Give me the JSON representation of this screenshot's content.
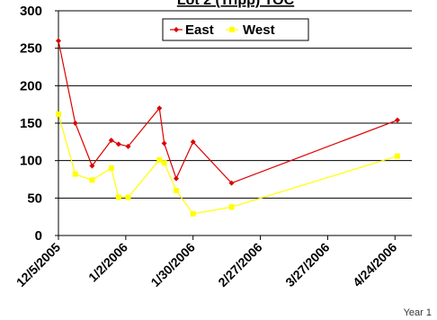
{
  "chart_data": {
    "type": "line",
    "title": "",
    "title_partial": "Lot 2 (Tripp) TOC",
    "xlabel": "",
    "ylabel": "",
    "footer": "Year 1",
    "ylim": [
      0,
      300
    ],
    "yticks": [
      0,
      50,
      100,
      150,
      200,
      250,
      300
    ],
    "xlim": [
      "2005-12-05",
      "2006-05-01"
    ],
    "xticks": [
      "12/5/2005",
      "1/2/2006",
      "1/30/2006",
      "2/27/2006",
      "3/27/2006",
      "4/24/2006"
    ],
    "grid": "horizontal",
    "legend_position": "top-right",
    "series": [
      {
        "name": "East",
        "color": "#dd0000",
        "marker": "diamond",
        "x": [
          "2005-12-05",
          "2005-12-12",
          "2005-12-19",
          "2005-12-27",
          "2005-12-30",
          "2006-01-03",
          "2006-01-16",
          "2006-01-18",
          "2006-01-23",
          "2006-01-30",
          "2006-02-15",
          "2006-04-25"
        ],
        "y": [
          260,
          150,
          93,
          127,
          122,
          119,
          170,
          123,
          76,
          125,
          70,
          154
        ]
      },
      {
        "name": "West",
        "color": "#ffff00",
        "marker": "square",
        "x": [
          "2005-12-05",
          "2005-12-12",
          "2005-12-19",
          "2005-12-27",
          "2005-12-30",
          "2006-01-03",
          "2006-01-16",
          "2006-01-18",
          "2006-01-23",
          "2006-01-30",
          "2006-02-15",
          "2006-04-25"
        ],
        "y": [
          162,
          82,
          74,
          90,
          51,
          51,
          101,
          97,
          60,
          29,
          38,
          106
        ]
      }
    ]
  }
}
